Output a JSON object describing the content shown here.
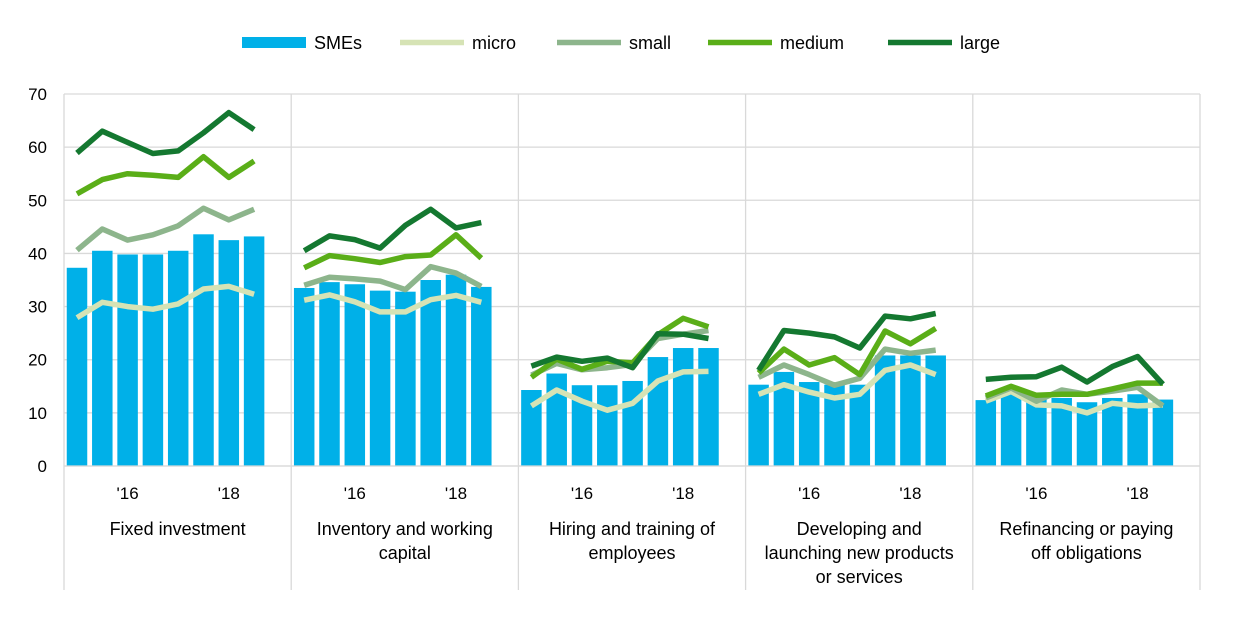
{
  "chart_data": {
    "type": "bar",
    "ylim": [
      0,
      70
    ],
    "yticks": [
      0,
      10,
      20,
      30,
      40,
      50,
      60,
      70
    ],
    "grid": true,
    "legend_position": "top-center",
    "legend": [
      {
        "name": "SMEs",
        "kind": "bar",
        "color": "#00B0E8"
      },
      {
        "name": "micro",
        "kind": "line",
        "color": "#D6E3B5"
      },
      {
        "name": "small",
        "kind": "line",
        "color": "#8DB58C"
      },
      {
        "name": "medium",
        "kind": "line",
        "color": "#5AAE18"
      },
      {
        "name": "large",
        "kind": "line",
        "color": "#147830"
      }
    ],
    "x_tick_labels": [
      {
        "index": 2,
        "label": "'16"
      },
      {
        "index": 6,
        "label": "'18"
      }
    ],
    "groups": [
      {
        "label_lines": [
          "Fixed investment"
        ],
        "SMEs": [
          37.3,
          40.5,
          39.8,
          39.8,
          40.5,
          43.6,
          42.5,
          43.2
        ],
        "micro": [
          27.9,
          30.8,
          30.0,
          29.5,
          30.5,
          33.3,
          33.8,
          32.3
        ],
        "small": [
          40.6,
          44.6,
          42.5,
          43.5,
          45.2,
          48.5,
          46.3,
          48.3
        ],
        "medium": [
          51.2,
          53.9,
          55.0,
          54.7,
          54.3,
          58.2,
          54.3,
          57.4
        ],
        "large": [
          58.9,
          63.0,
          60.9,
          58.8,
          59.3,
          62.7,
          66.5,
          63.3
        ]
      },
      {
        "label_lines": [
          "Inventory and working",
          "capital"
        ],
        "SMEs": [
          33.5,
          34.6,
          34.2,
          33.0,
          32.8,
          35.0,
          36.0,
          33.7
        ],
        "micro": [
          31.2,
          32.2,
          30.9,
          29.0,
          29.0,
          31.3,
          32.1,
          30.8
        ],
        "small": [
          34.0,
          35.5,
          35.2,
          34.8,
          33.2,
          37.5,
          36.3,
          33.8
        ],
        "medium": [
          37.3,
          39.6,
          39.0,
          38.3,
          39.4,
          39.7,
          43.5,
          39.1
        ],
        "large": [
          40.5,
          43.3,
          42.6,
          41.0,
          45.3,
          48.3,
          44.8,
          45.8
        ]
      },
      {
        "label_lines": [
          "Hiring and training of",
          "employees"
        ],
        "SMEs": [
          14.3,
          17.4,
          15.2,
          15.2,
          16.0,
          20.5,
          22.2,
          22.2
        ],
        "micro": [
          11.3,
          14.3,
          12.2,
          10.5,
          11.8,
          16.0,
          17.7,
          17.8
        ],
        "small": [
          17.1,
          19.3,
          18.1,
          18.5,
          19.1,
          24.0,
          24.8,
          25.5
        ],
        "medium": [
          16.7,
          20.1,
          18.2,
          19.7,
          19.4,
          24.7,
          27.8,
          26.2
        ],
        "large": [
          18.8,
          20.5,
          19.7,
          20.3,
          18.5,
          24.9,
          24.8,
          24.0
        ]
      },
      {
        "label_lines": [
          "Developing and",
          "launching new products",
          "or services"
        ],
        "SMEs": [
          15.3,
          17.7,
          15.8,
          15.3,
          15.3,
          20.8,
          20.8,
          20.8
        ],
        "micro": [
          13.5,
          15.3,
          13.9,
          12.8,
          13.5,
          18.0,
          19.0,
          17.2
        ],
        "small": [
          16.7,
          19.0,
          17.2,
          15.2,
          16.5,
          22.0,
          21.2,
          21.8
        ],
        "medium": [
          17.5,
          22.0,
          19.0,
          20.4,
          17.2,
          25.4,
          23.0,
          25.9
        ],
        "large": [
          18.0,
          25.5,
          25.0,
          24.3,
          22.2,
          28.2,
          27.7,
          28.7
        ]
      },
      {
        "label_lines": [
          "Refinancing or paying",
          "off obligations"
        ],
        "SMEs": [
          12.4,
          13.5,
          12.8,
          12.8,
          12.0,
          12.8,
          13.5,
          12.5
        ],
        "micro": [
          12.2,
          14.0,
          11.5,
          11.3,
          10.0,
          11.8,
          11.3,
          11.5
        ],
        "small": [
          12.8,
          14.7,
          12.2,
          14.3,
          13.5,
          14.1,
          14.8,
          11.3
        ],
        "medium": [
          13.2,
          15.0,
          13.3,
          13.5,
          13.5,
          14.5,
          15.6,
          15.6
        ],
        "large": [
          16.3,
          16.7,
          16.8,
          18.6,
          15.8,
          18.7,
          20.6,
          15.4
        ]
      }
    ]
  }
}
